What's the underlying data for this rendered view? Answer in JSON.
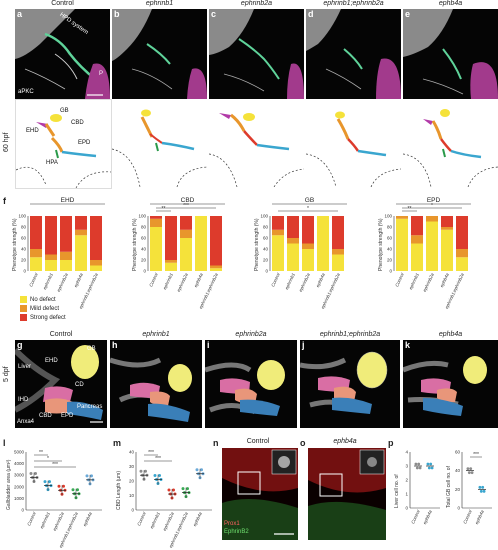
{
  "row1": {
    "panels": [
      {
        "id": "a",
        "title": "Control"
      },
      {
        "id": "b",
        "title": "ephrinb1"
      },
      {
        "id": "c",
        "title": "ephrinb2a"
      },
      {
        "id": "d",
        "title": "ephrinb1;ephrinb2a"
      },
      {
        "id": "e",
        "title": "ephb4a"
      }
    ],
    "side_label": "60 hpf",
    "labels": {
      "hpd": "HPD system",
      "p": "P",
      "apkc": "aPKC",
      "gb": "GB",
      "cbd": "CBD",
      "ehd": "EHD",
      "epd": "EPD",
      "hpa": "HPA"
    }
  },
  "colors": {
    "no_defect": "#f5e23a",
    "mild_defect": "#e8962c",
    "strong_defect": "#dd3b2c"
  },
  "panel_f": {
    "id": "f",
    "legend": [
      "No defect",
      "Mild defect",
      "Strong defect"
    ],
    "ylabel": "Phenotype strength (%)",
    "categories": [
      "Control",
      "ephrinb1",
      "ephrinb2a",
      "ephb4a",
      "ephrinb1;ephrinb2a"
    ],
    "sig": [
      "**",
      "***",
      "*",
      "**",
      "*"
    ],
    "ticks": [
      "0",
      "20",
      "40",
      "60",
      "80",
      "100"
    ]
  },
  "chart_data": [
    {
      "type": "bar",
      "title": "EHD",
      "categories": [
        "Control",
        "ephrinb1",
        "ephrinb2a",
        "ephb4a",
        "ephrinb1;ephrinb2a"
      ],
      "series": [
        {
          "name": "No defect",
          "values": [
            25,
            20,
            20,
            65,
            10
          ]
        },
        {
          "name": "Mild defect",
          "values": [
            15,
            10,
            15,
            10,
            10
          ]
        },
        {
          "name": "Strong defect",
          "values": [
            60,
            70,
            65,
            25,
            80
          ]
        }
      ],
      "ylabel": "Phenotype strength (%)",
      "ylim": [
        0,
        100
      ]
    },
    {
      "type": "bar",
      "title": "CBD",
      "categories": [
        "Control",
        "ephrinb1",
        "ephrinb2a",
        "ephb4a",
        "ephrinb1;ephrinb2a"
      ],
      "series": [
        {
          "name": "No defect",
          "values": [
            80,
            15,
            60,
            100,
            5
          ]
        },
        {
          "name": "Mild defect",
          "values": [
            15,
            5,
            15,
            0,
            5
          ]
        },
        {
          "name": "Strong defect",
          "values": [
            5,
            80,
            25,
            0,
            90
          ]
        }
      ],
      "ylabel": "Phenotype strength (%)",
      "ylim": [
        0,
        100
      ]
    },
    {
      "type": "bar",
      "title": "GB",
      "categories": [
        "Control",
        "ephrinb1",
        "ephrinb2a",
        "ephb4a",
        "ephrinb1;ephrinb2a"
      ],
      "series": [
        {
          "name": "No defect",
          "values": [
            65,
            50,
            40,
            100,
            30
          ]
        },
        {
          "name": "Mild defect",
          "values": [
            10,
            10,
            10,
            0,
            10
          ]
        },
        {
          "name": "Strong defect",
          "values": [
            25,
            40,
            50,
            0,
            60
          ]
        }
      ],
      "ylabel": "Phenotype strength (%)",
      "ylim": [
        0,
        100
      ]
    },
    {
      "type": "bar",
      "title": "EPD",
      "categories": [
        "Control",
        "ephrinb1",
        "ephrinb2a",
        "ephb4a",
        "ephrinb1;ephrinb2a"
      ],
      "series": [
        {
          "name": "No defect",
          "values": [
            95,
            50,
            90,
            75,
            25
          ]
        },
        {
          "name": "Mild defect",
          "values": [
            5,
            15,
            10,
            5,
            15
          ]
        },
        {
          "name": "Strong defect",
          "values": [
            0,
            35,
            0,
            20,
            60
          ]
        }
      ],
      "ylabel": "Phenotype strength (%)",
      "ylim": [
        0,
        100
      ]
    },
    {
      "type": "scatter",
      "id": "l",
      "ylabel": "Gallbladder area (µm²)",
      "categories": [
        "Control",
        "ephrinb1",
        "ephrinb2a",
        "ephrinb1;ephrinb2a",
        "ephb4a"
      ],
      "means": [
        2800,
        2100,
        1700,
        1400,
        2600
      ],
      "ylim": [
        0,
        5000
      ],
      "yticks": [
        "0",
        "1000",
        "2000",
        "3000",
        "4000",
        "5000"
      ],
      "sig": [
        "**",
        "*",
        "***"
      ]
    },
    {
      "type": "scatter",
      "id": "m",
      "ylabel": "CBD Length (µm)",
      "categories": [
        "Control",
        "ephrinb1",
        "ephrinb2a",
        "ephrinb1;ephrinb2a",
        "ephb4a"
      ],
      "means": [
        24,
        21,
        11,
        12,
        25
      ],
      "ylim": [
        0,
        40
      ],
      "yticks": [
        "0",
        "10",
        "20",
        "30",
        "40"
      ],
      "sig": [
        "***",
        "***"
      ]
    },
    {
      "type": "scatter",
      "id": "p-left",
      "ylabel": "Liver cell no. of",
      "categories": [
        "Control",
        "ephb4a"
      ],
      "means": [
        3,
        3
      ],
      "ylim": [
        0,
        4
      ],
      "yticks": [
        "0",
        "1",
        "2",
        "3",
        "4"
      ]
    },
    {
      "type": "scatter",
      "id": "p-right",
      "ylabel": "Total GB cell no. of",
      "categories": [
        "Control",
        "ephb4a"
      ],
      "means": [
        40,
        20
      ],
      "ylim": [
        0,
        60
      ],
      "yticks": [
        "0",
        "20",
        "40",
        "60"
      ],
      "sig": [
        "***"
      ]
    }
  ],
  "row3": {
    "panels": [
      {
        "id": "g",
        "title": "Control"
      },
      {
        "id": "h",
        "title": "ephrinb1"
      },
      {
        "id": "i",
        "title": "ephrinb2a"
      },
      {
        "id": "j",
        "title": "ephrinb1;ephrinb2a"
      },
      {
        "id": "k",
        "title": "ephb4a"
      }
    ],
    "side_label": "5 dpf",
    "labels": {
      "liver": "Liver",
      "ehd": "EHD",
      "gb": "GB",
      "cd": "CD",
      "ihd": "IHD",
      "cbd": "CBD",
      "epd": "EPD",
      "pancreas": "Pancreas",
      "anxa4": "Anxa4"
    }
  },
  "row4": {
    "l": {
      "id": "l"
    },
    "m": {
      "id": "m"
    },
    "n": {
      "id": "n",
      "title": "Control",
      "prox1": "Prox1",
      "ephb2": "EphrinB2"
    },
    "o": {
      "id": "o",
      "title": "ephb4a"
    },
    "p": {
      "id": "p"
    }
  }
}
